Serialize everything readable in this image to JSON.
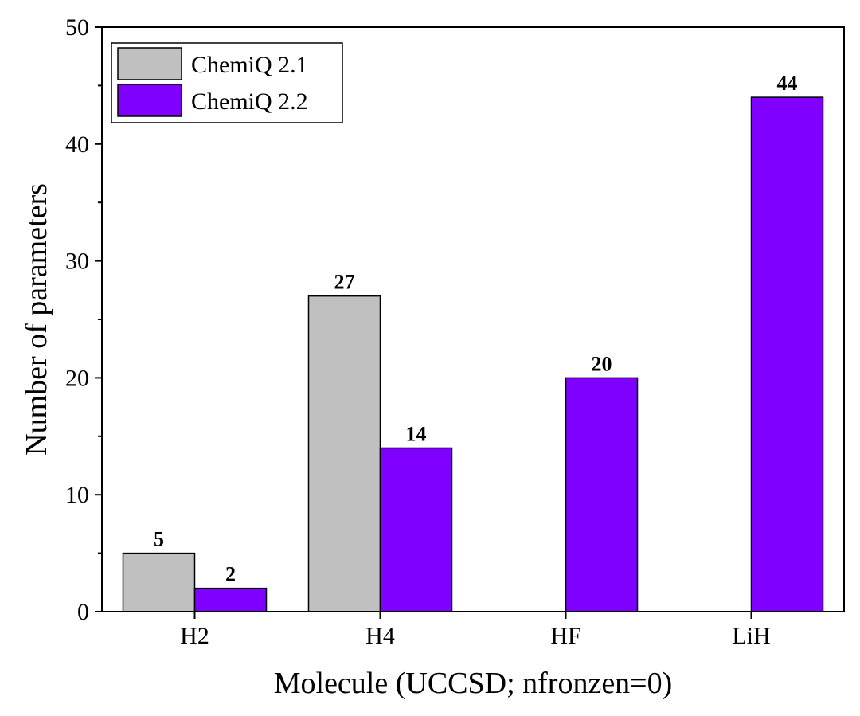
{
  "chart_data": {
    "type": "bar",
    "categories": [
      "H2",
      "H4",
      "HF",
      "LiH"
    ],
    "series": [
      {
        "name": "ChemiQ 2.1",
        "color": "#c0c0c0",
        "values": [
          5,
          27,
          null,
          null
        ]
      },
      {
        "name": "ChemiQ 2.2",
        "color": "#7f00ff",
        "values": [
          2,
          14,
          20,
          44
        ]
      }
    ],
    "data_labels": {
      "ChemiQ 2.1": [
        "5",
        "27",
        "",
        ""
      ],
      "ChemiQ 2.2": [
        "2",
        "14",
        "20",
        "44"
      ]
    },
    "title": "",
    "xlabel": "Molecule (UCCSD; nfronzen=0)",
    "ylabel": "Number of parameters",
    "ylim": [
      0,
      50
    ],
    "yticks": [
      0,
      10,
      20,
      30,
      40,
      50
    ],
    "grid": false,
    "legend_position": "top-left"
  }
}
